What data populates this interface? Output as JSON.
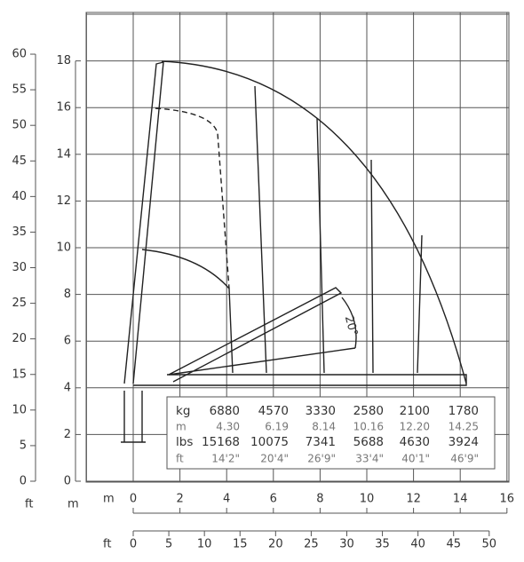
{
  "axes": {
    "left_ft": {
      "unit": "ft",
      "ticks": [
        0,
        5,
        10,
        15,
        20,
        25,
        30,
        35,
        40,
        45,
        50,
        55,
        60
      ]
    },
    "left_m": {
      "unit": "m",
      "ticks": [
        0,
        2,
        4,
        6,
        8,
        10,
        12,
        14,
        16,
        18
      ]
    },
    "bottom_m": {
      "unit": "m",
      "ticks": [
        0,
        2,
        4,
        6,
        8,
        10,
        12,
        14,
        16
      ]
    },
    "bottom_ft": {
      "unit": "ft",
      "ticks": [
        0,
        5,
        10,
        15,
        20,
        25,
        30,
        35,
        40,
        45,
        50
      ]
    }
  },
  "angle_label": "20°",
  "table": {
    "rows": [
      [
        "kg",
        "6880",
        "4570",
        "3330",
        "2580",
        "2100",
        "1780"
      ],
      [
        "m",
        "4.30",
        "6.19",
        "8.14",
        "10.16",
        "12.20",
        "14.25"
      ],
      [
        "lbs",
        "15168",
        "10075",
        "7341",
        "5688",
        "4630",
        "3924"
      ],
      [
        "ft",
        "14'2\"",
        "20'4\"",
        "26'9\"",
        "33'4\"",
        "40'1\"",
        "46'9\""
      ]
    ]
  }
}
